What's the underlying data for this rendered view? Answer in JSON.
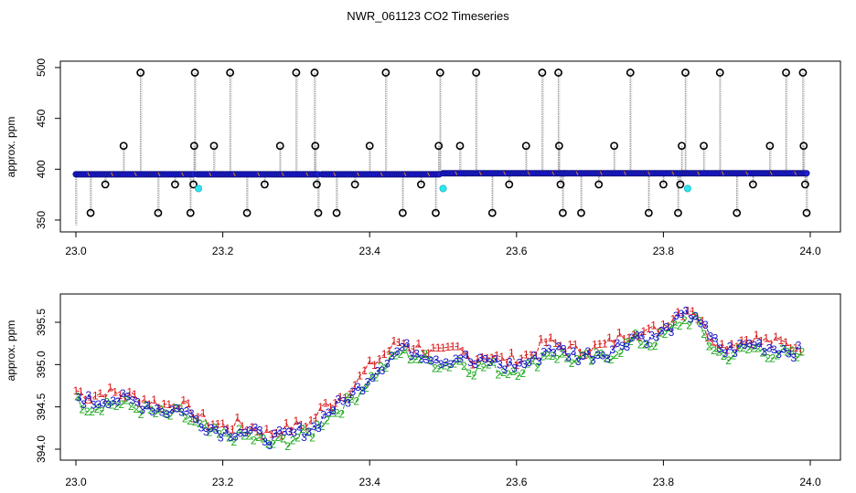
{
  "title": "NWR_061123  CO2 Timeseries",
  "chart_data": [
    {
      "type": "scatter",
      "panel": "top",
      "ylabel": "approx. ppm",
      "xlim": [
        23.0,
        24.0
      ],
      "ylim": [
        345,
        500
      ],
      "x_ticks": [
        "23.0",
        "23.2",
        "23.4",
        "23.6",
        "23.8",
        "24.0"
      ],
      "y_ticks": [
        "350",
        "400",
        "450",
        "500"
      ],
      "colors": {
        "points": "#1f1fd6",
        "point_outline": "#000000",
        "spike_line": "#999999",
        "flag": "#2ee6f0",
        "trace": "#e08020"
      },
      "baseline": [
        {
          "x0": 23.0,
          "x1": 23.16,
          "y": 395
        },
        {
          "x0": 23.165,
          "x1": 23.33,
          "y": 395
        },
        {
          "x0": 23.335,
          "x1": 23.495,
          "y": 395
        },
        {
          "x0": 23.5,
          "x1": 23.665,
          "y": 396
        },
        {
          "x0": 23.665,
          "x1": 23.828,
          "y": 396
        },
        {
          "x0": 23.83,
          "x1": 23.995,
          "y": 396
        }
      ],
      "spikes": [
        {
          "x": 23.0,
          "y": 345
        },
        {
          "x": 23.02,
          "y": 357
        },
        {
          "x": 23.04,
          "y": 385
        },
        {
          "x": 23.065,
          "y": 423
        },
        {
          "x": 23.088,
          "y": 495
        },
        {
          "x": 23.112,
          "y": 357
        },
        {
          "x": 23.135,
          "y": 385
        },
        {
          "x": 23.156,
          "y": 357
        },
        {
          "x": 23.16,
          "y": 385
        },
        {
          "x": 23.161,
          "y": 423
        },
        {
          "x": 23.162,
          "y": 495
        },
        {
          "x": 23.188,
          "y": 423
        },
        {
          "x": 23.21,
          "y": 495
        },
        {
          "x": 23.233,
          "y": 357
        },
        {
          "x": 23.257,
          "y": 385
        },
        {
          "x": 23.278,
          "y": 423
        },
        {
          "x": 23.3,
          "y": 495
        },
        {
          "x": 23.325,
          "y": 495
        },
        {
          "x": 23.326,
          "y": 423
        },
        {
          "x": 23.328,
          "y": 385
        },
        {
          "x": 23.33,
          "y": 357
        },
        {
          "x": 23.355,
          "y": 357
        },
        {
          "x": 23.38,
          "y": 385
        },
        {
          "x": 23.4,
          "y": 423
        },
        {
          "x": 23.422,
          "y": 495
        },
        {
          "x": 23.445,
          "y": 357
        },
        {
          "x": 23.47,
          "y": 385
        },
        {
          "x": 23.49,
          "y": 357
        },
        {
          "x": 23.494,
          "y": 423
        },
        {
          "x": 23.496,
          "y": 495
        },
        {
          "x": 23.523,
          "y": 423
        },
        {
          "x": 23.545,
          "y": 495
        },
        {
          "x": 23.567,
          "y": 357
        },
        {
          "x": 23.59,
          "y": 385
        },
        {
          "x": 23.613,
          "y": 423
        },
        {
          "x": 23.635,
          "y": 495
        },
        {
          "x": 23.657,
          "y": 495
        },
        {
          "x": 23.658,
          "y": 423
        },
        {
          "x": 23.66,
          "y": 385
        },
        {
          "x": 23.663,
          "y": 357
        },
        {
          "x": 23.688,
          "y": 357
        },
        {
          "x": 23.712,
          "y": 385
        },
        {
          "x": 23.733,
          "y": 423
        },
        {
          "x": 23.755,
          "y": 495
        },
        {
          "x": 23.78,
          "y": 357
        },
        {
          "x": 23.8,
          "y": 385
        },
        {
          "x": 23.82,
          "y": 357
        },
        {
          "x": 23.823,
          "y": 385
        },
        {
          "x": 23.825,
          "y": 423
        },
        {
          "x": 23.83,
          "y": 495
        },
        {
          "x": 23.855,
          "y": 423
        },
        {
          "x": 23.877,
          "y": 495
        },
        {
          "x": 23.9,
          "y": 357
        },
        {
          "x": 23.922,
          "y": 385
        },
        {
          "x": 23.945,
          "y": 423
        },
        {
          "x": 23.967,
          "y": 495
        },
        {
          "x": 23.99,
          "y": 495
        },
        {
          "x": 23.991,
          "y": 423
        },
        {
          "x": 23.993,
          "y": 385
        },
        {
          "x": 23.995,
          "y": 357
        }
      ],
      "flags": [
        {
          "x": 23.167,
          "y": 381
        },
        {
          "x": 23.5,
          "y": 381
        },
        {
          "x": 23.833,
          "y": 381
        }
      ]
    },
    {
      "type": "line",
      "panel": "bottom",
      "ylabel": "approx. ppm",
      "xlim": [
        23.0,
        24.0
      ],
      "ylim": [
        393.95,
        395.85
      ],
      "x_ticks": [
        "23.0",
        "23.2",
        "23.4",
        "23.6",
        "23.8",
        "24.0"
      ],
      "y_ticks": [
        "394.0",
        "394.5",
        "395.0",
        "395.5"
      ],
      "series": [
        {
          "name": "1",
          "color": "#d81818",
          "offset": 0.12
        },
        {
          "name": "2",
          "color": "#1faa1f",
          "offset": -0.1
        },
        {
          "name": "3",
          "color": "#1616c8",
          "offset": 0.0
        }
      ],
      "x": [
        23.0,
        23.02,
        23.04,
        23.06,
        23.08,
        23.1,
        23.12,
        23.14,
        23.16,
        23.18,
        23.2,
        23.22,
        23.24,
        23.26,
        23.28,
        23.3,
        23.32,
        23.34,
        23.36,
        23.38,
        23.4,
        23.42,
        23.44,
        23.46,
        23.48,
        23.5,
        23.52,
        23.54,
        23.56,
        23.58,
        23.6,
        23.62,
        23.64,
        23.66,
        23.68,
        23.7,
        23.72,
        23.74,
        23.76,
        23.78,
        23.8,
        23.82,
        23.84,
        23.86,
        23.88,
        23.9,
        23.92,
        23.94,
        23.96,
        23.98
      ],
      "y": [
        394.62,
        394.55,
        394.6,
        394.58,
        394.55,
        394.5,
        394.45,
        394.48,
        394.35,
        394.25,
        394.2,
        394.22,
        394.18,
        394.12,
        394.15,
        394.2,
        394.25,
        394.45,
        394.55,
        394.7,
        394.9,
        395.05,
        395.2,
        395.15,
        395.1,
        395.05,
        395.1,
        395.0,
        395.05,
        394.98,
        395.0,
        395.05,
        395.2,
        395.15,
        395.1,
        395.12,
        395.15,
        395.25,
        395.35,
        395.3,
        395.4,
        395.55,
        395.6,
        395.3,
        395.15,
        395.2,
        395.25,
        395.2,
        395.18,
        395.15
      ]
    }
  ]
}
